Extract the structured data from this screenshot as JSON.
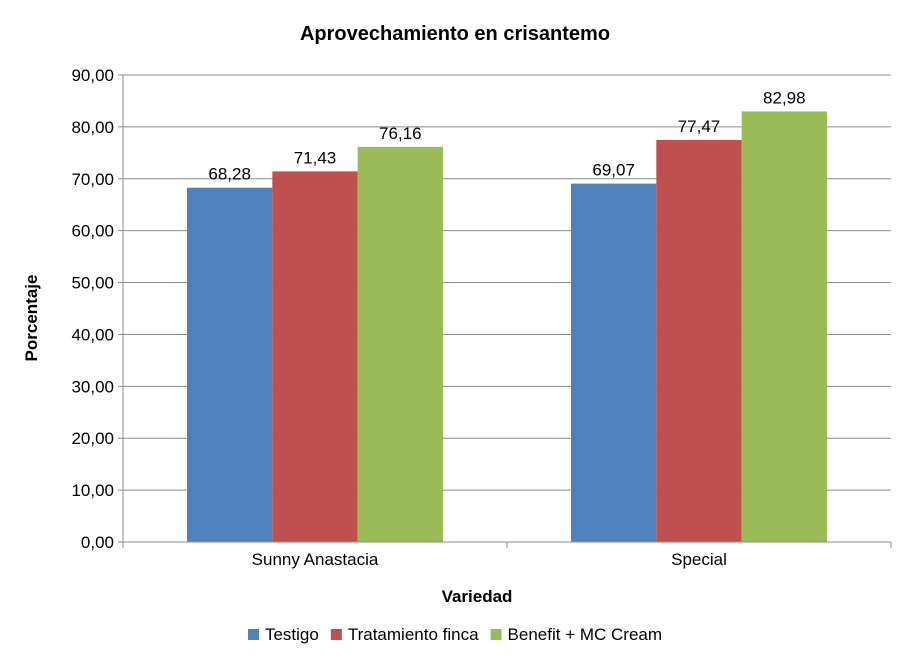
{
  "chart_data": {
    "type": "bar",
    "title": "Aprovechamiento en crisantemo",
    "xlabel": "Variedad",
    "ylabel": "Porcentaje",
    "categories": [
      "Sunny Anastacia",
      "Special"
    ],
    "series": [
      {
        "name": "Testigo",
        "color": "#4F81BD",
        "values": [
          68.28,
          69.07
        ],
        "labels": [
          "68,28",
          "69,07"
        ]
      },
      {
        "name": "Tratamiento finca",
        "color": "#C0504D",
        "values": [
          71.43,
          77.47
        ],
        "labels": [
          "71,43",
          "77,47"
        ]
      },
      {
        "name": "Benefit + MC Cream",
        "color": "#9BBB59",
        "values": [
          76.16,
          82.98
        ],
        "labels": [
          "76,16",
          "82,98"
        ]
      }
    ],
    "ylim": [
      0,
      90
    ],
    "yticks": [
      0,
      10,
      20,
      30,
      40,
      50,
      60,
      70,
      80,
      90
    ],
    "ytick_labels": [
      "0,00",
      "10,00",
      "20,00",
      "30,00",
      "40,00",
      "50,00",
      "60,00",
      "70,00",
      "80,00",
      "90,00"
    ],
    "grid": true,
    "legend_position": "bottom"
  }
}
